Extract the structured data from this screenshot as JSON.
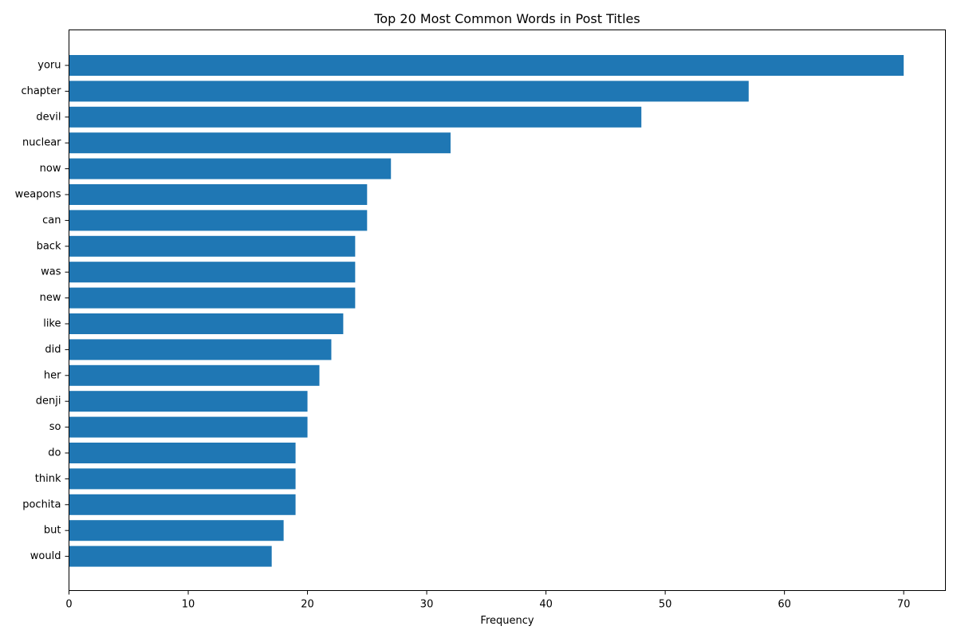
{
  "chart_data": {
    "type": "bar",
    "orientation": "horizontal",
    "title": "Top 20 Most Common Words in Post Titles",
    "xlabel": "Frequency",
    "ylabel": "",
    "categories": [
      "yoru",
      "chapter",
      "devil",
      "nuclear",
      "now",
      "weapons",
      "can",
      "back",
      "was",
      "new",
      "like",
      "did",
      "her",
      "denji",
      "so",
      "do",
      "think",
      "pochita",
      "but",
      "would"
    ],
    "values": [
      70,
      57,
      48,
      32,
      27,
      25,
      25,
      24,
      24,
      24,
      23,
      22,
      21,
      20,
      20,
      19,
      19,
      19,
      18,
      17
    ],
    "xlim": [
      0,
      73.5
    ],
    "xticks": [
      0,
      10,
      20,
      30,
      40,
      50,
      60,
      70
    ],
    "grid": false,
    "bar_color": "#1f77b4"
  }
}
